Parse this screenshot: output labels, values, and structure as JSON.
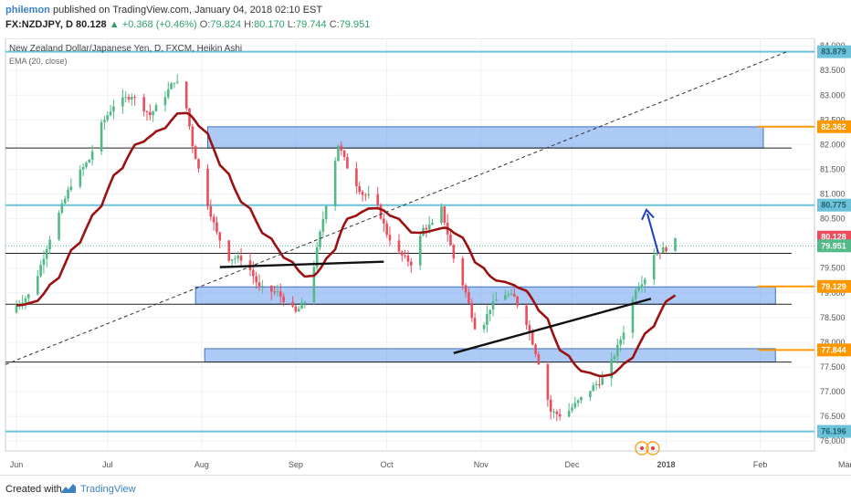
{
  "header": {
    "publisher": "philemon",
    "published_text": "published on TradingView.com, January 04, 2018 02:10 EST",
    "symbol": "FX:NZDJPY, D",
    "last": "80.128",
    "change": "+0.368 (+0.46%)",
    "o_label": "O:",
    "o_value": "79.824",
    "h_label": "H:",
    "h_value": "80.170",
    "l_label": "L:",
    "l_value": "79.744",
    "c_label": "C:",
    "c_value": "79.951"
  },
  "footer": {
    "created_with": "Created with",
    "brand": "TradingView"
  },
  "colors": {
    "up": "#53b987",
    "down": "#eb4d5c",
    "ema": "#9b1111",
    "zone_fill": "#6a9ff0",
    "zone_stroke": "#3f6fbf",
    "cyan_line": "#6cc3d9",
    "orange": "#ff9800",
    "price_grey": "#4fb7c4"
  },
  "chart_data": {
    "type": "candlestick",
    "title": "New Zealand Dollar/Japanese Yen, D, FXCM, Heikin Ashi",
    "indicator_label": "EMA (20, close)",
    "y_ticks": [
      "84.000",
      "83.500",
      "83.000",
      "82.500",
      "82.000",
      "81.500",
      "81.000",
      "80.500",
      "80.000",
      "79.500",
      "79.000",
      "78.500",
      "78.000",
      "77.500",
      "77.000",
      "76.500",
      "76.000"
    ],
    "ylim": [
      75.8,
      84.15
    ],
    "x_ticks": [
      {
        "label": "Jun",
        "day": 0
      },
      {
        "label": "Jul",
        "day": 30
      },
      {
        "label": "Aug",
        "day": 61
      },
      {
        "label": "Sep",
        "day": 92
      },
      {
        "label": "Oct",
        "day": 122
      },
      {
        "label": "Nov",
        "day": 153
      },
      {
        "label": "Dec",
        "day": 183
      },
      {
        "label": "2018",
        "day": 214
      },
      {
        "label": "Feb",
        "day": 245
      },
      {
        "label": "Mar",
        "day": 273
      }
    ],
    "price_tags": [
      {
        "label": "83.879",
        "value": 83.879,
        "kind": "cyan"
      },
      {
        "label": "82.362",
        "value": 82.362,
        "kind": "orange"
      },
      {
        "label": "80.775",
        "value": 80.775,
        "kind": "cyan"
      },
      {
        "label": "80.128",
        "value": 80.128,
        "kind": "red"
      },
      {
        "label": "79.951",
        "value": 79.951,
        "kind": "green"
      },
      {
        "label": "79.129",
        "value": 79.129,
        "kind": "orange"
      },
      {
        "label": "77.844",
        "value": 77.844,
        "kind": "orange"
      },
      {
        "label": "76.196",
        "value": 76.196,
        "kind": "cyan"
      }
    ],
    "ohlc_sample": [
      {
        "date": "2018-01-04",
        "open": 79.824,
        "high": 80.17,
        "low": 79.744,
        "close": 79.951
      }
    ]
  }
}
